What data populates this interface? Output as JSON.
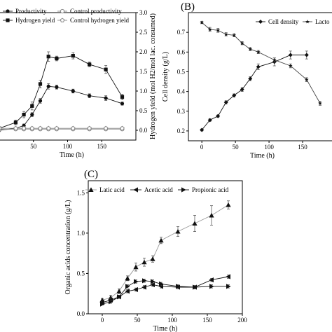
{
  "chart_data": [
    {
      "id": "A",
      "type": "line",
      "panel_label": "",
      "xlabel": "Time (h)",
      "ylabel_left": "",
      "ylabel_right": "Hydrogen yield (mol H2/mol lac. consumed)",
      "x_ticks": [
        50,
        100,
        150
      ],
      "y_right_ticks": [
        "0.0",
        "0.5",
        "1.0",
        "1.5",
        "2.0",
        "2.5",
        "3.0"
      ],
      "xlim": [
        0,
        200
      ],
      "y_right_lim": [
        -0.25,
        3.0
      ],
      "legend": [
        {
          "name": "Productivity",
          "marker": "circle-filled"
        },
        {
          "name": "Control productivity",
          "marker": "circle-open"
        },
        {
          "name": "Hydrogen yield",
          "marker": "square-filled"
        },
        {
          "name": "Control hydrogen yield",
          "marker": "pentagon-open"
        }
      ],
      "series": [
        {
          "name": "Productivity",
          "x": [
            0,
            24,
            36,
            48,
            60,
            72,
            84,
            108,
            132,
            156,
            180
          ],
          "y": [
            0.0,
            0.05,
            0.12,
            0.4,
            0.75,
            1.12,
            1.1,
            1.0,
            0.88,
            0.82,
            0.68
          ],
          "err": [
            0.02,
            0.03,
            0.04,
            0.05,
            0.06,
            0.07,
            0.05,
            0.05,
            0.05,
            0.06,
            0.04
          ]
        },
        {
          "name": "Control productivity",
          "x": [
            0,
            24,
            36,
            48,
            60,
            72,
            84,
            108,
            132,
            156,
            180
          ],
          "y": [
            0.02,
            0.03,
            0.03,
            0.03,
            0.03,
            0.03,
            0.03,
            0.03,
            0.03,
            0.03,
            0.03
          ],
          "err": []
        },
        {
          "name": "Hydrogen yield",
          "x": [
            0,
            24,
            36,
            48,
            60,
            72,
            84,
            108,
            132,
            156,
            180
          ],
          "y": [
            0.05,
            0.2,
            0.4,
            0.62,
            1.18,
            1.88,
            1.83,
            1.9,
            1.68,
            1.55,
            0.85
          ],
          "err": [
            0.03,
            0.06,
            0.08,
            0.1,
            0.1,
            0.12,
            0.06,
            0.08,
            0.06,
            0.1,
            0.07
          ]
        },
        {
          "name": "Control hydrogen yield",
          "x": [
            0,
            24,
            36,
            48,
            60,
            72,
            84,
            108,
            132,
            156,
            180
          ],
          "y": [
            0.05,
            0.05,
            0.05,
            0.05,
            0.05,
            0.05,
            0.05,
            0.05,
            0.05,
            0.05,
            0.05
          ],
          "err": []
        }
      ]
    },
    {
      "id": "B",
      "type": "line",
      "panel_label": "(B)",
      "xlabel": "Time (h)",
      "ylabel": "Cell density (g/L)",
      "x_ticks": [
        0,
        50,
        100,
        150
      ],
      "y_ticks": [
        "0.2",
        "0.3",
        "0.4",
        "0.5",
        "0.6",
        "0.7"
      ],
      "xlim": [
        -20,
        200
      ],
      "ylim": [
        0.15,
        0.8
      ],
      "legend": [
        {
          "name": "Cell density",
          "marker": "diamond-filled"
        },
        {
          "name": "Lacto",
          "marker": "star-filled"
        }
      ],
      "series": [
        {
          "name": "Cell density",
          "x": [
            0,
            12,
            24,
            36,
            48,
            60,
            72,
            84,
            108,
            132,
            156
          ],
          "y": [
            0.205,
            0.255,
            0.275,
            0.345,
            0.38,
            0.41,
            0.465,
            0.525,
            0.55,
            0.585,
            0.585
          ],
          "err": [
            0.005,
            0.006,
            0.006,
            0.008,
            0.008,
            0.01,
            0.01,
            0.015,
            0.02,
            0.02,
            0.02
          ]
        },
        {
          "name": "Lacto",
          "x": [
            0,
            12,
            24,
            36,
            48,
            60,
            72,
            84,
            108,
            132,
            156,
            176
          ],
          "y": [
            0.75,
            0.715,
            0.71,
            0.69,
            0.685,
            0.645,
            0.615,
            0.6,
            0.56,
            0.53,
            0.46,
            0.34
          ],
          "err": [
            0.006,
            0.01,
            0.01,
            0.008,
            0.008,
            0.008,
            0.008,
            0.008,
            0.01,
            0.01,
            0.01,
            0.01
          ]
        }
      ]
    },
    {
      "id": "C",
      "type": "line",
      "panel_label": "(C)",
      "xlabel": "Time (h)",
      "ylabel": "Organic acids concentration (g/L)",
      "x_ticks": [
        0,
        50,
        100,
        150,
        200
      ],
      "y_ticks": [
        "0.0",
        "0.5",
        "1.0",
        "1.5"
      ],
      "xlim": [
        -20,
        200
      ],
      "ylim": [
        0,
        1.65
      ],
      "legend": [
        {
          "name": "Latic acid",
          "marker": "triangle-up"
        },
        {
          "name": "Acetic acid",
          "marker": "triangle-left"
        },
        {
          "name": "Propionic acid",
          "marker": "triangle-right"
        }
      ],
      "series": [
        {
          "name": "Latic acid",
          "x": [
            0,
            12,
            24,
            36,
            48,
            60,
            72,
            84,
            108,
            132,
            156,
            180
          ],
          "y": [
            0.17,
            0.2,
            0.28,
            0.44,
            0.58,
            0.64,
            0.68,
            0.91,
            1.02,
            1.12,
            1.22,
            1.35
          ],
          "err": [
            0.02,
            0.03,
            0.03,
            0.03,
            0.05,
            0.05,
            0.04,
            0.04,
            0.06,
            0.1,
            0.12,
            0.05
          ]
        },
        {
          "name": "Acetic acid",
          "x": [
            0,
            12,
            24,
            36,
            48,
            60,
            72,
            84,
            108,
            132,
            156,
            180
          ],
          "y": [
            0.14,
            0.17,
            0.21,
            0.28,
            0.3,
            0.33,
            0.36,
            0.34,
            0.33,
            0.33,
            0.42,
            0.46
          ],
          "err": [
            0.01,
            0.02,
            0.02,
            0.02,
            0.02,
            0.02,
            0.02,
            0.02,
            0.02,
            0.02,
            0.02,
            0.02
          ]
        },
        {
          "name": "Propionic acid",
          "x": [
            0,
            12,
            24,
            36,
            48,
            60,
            72,
            84,
            108,
            132,
            156,
            180
          ],
          "y": [
            0.12,
            0.15,
            0.21,
            0.34,
            0.4,
            0.41,
            0.4,
            0.37,
            0.34,
            0.33,
            0.34,
            0.34
          ],
          "err": [
            0.01,
            0.02,
            0.02,
            0.02,
            0.02,
            0.02,
            0.02,
            0.02,
            0.02,
            0.02,
            0.02,
            0.02
          ]
        }
      ]
    }
  ]
}
